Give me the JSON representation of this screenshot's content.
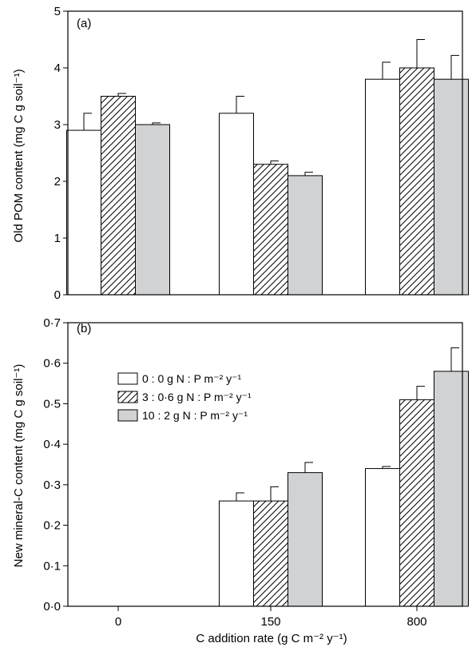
{
  "figure": {
    "xlabel": "C addition rate (g C m⁻² y⁻¹)"
  },
  "legend": {
    "entries": [
      "0 : 0 g N : P m⁻² y⁻¹",
      "3 : 0·6 g N : P m⁻² y⁻¹",
      "10 : 2 g N : P m⁻² y⁻¹"
    ],
    "fills": [
      "#ffffff",
      "hatch",
      "#d0d2d4"
    ]
  },
  "chart_data": [
    {
      "type": "bar",
      "panel_label": "(a)",
      "categories": [
        "0",
        "150",
        "800"
      ],
      "ylabel": "Old POM content (mg C g soil⁻¹)",
      "ylim": [
        0,
        5
      ],
      "yticks": [
        "0",
        "1",
        "2",
        "3",
        "4",
        "5"
      ],
      "series": [
        {
          "name": "0 : 0 g N : P m⁻² y⁻¹",
          "values": [
            2.9,
            3.2,
            3.8
          ],
          "errors": [
            0.3,
            0.3,
            0.3
          ]
        },
        {
          "name": "3 : 0·6 g N : P m⁻² y⁻¹",
          "values": [
            3.5,
            2.3,
            4.0
          ],
          "errors": [
            0.05,
            0.06,
            0.5
          ]
        },
        {
          "name": "10 : 2 g N : P m⁻² y⁻¹",
          "values": [
            3.0,
            2.1,
            3.8
          ],
          "errors": [
            0.03,
            0.06,
            0.42
          ]
        }
      ]
    },
    {
      "type": "bar",
      "panel_label": "(b)",
      "categories": [
        "0",
        "150",
        "800"
      ],
      "ylabel": "New mineral-C content (mg C g soil⁻¹)",
      "ylim": [
        0,
        0.7
      ],
      "yticks": [
        "0·0",
        "0·1",
        "0·2",
        "0·3",
        "0·4",
        "0·5",
        "0·6",
        "0·7"
      ],
      "series": [
        {
          "name": "0 : 0 g N : P m⁻² y⁻¹",
          "values": [
            0,
            0.26,
            0.34
          ],
          "errors": [
            0,
            0.02,
            0.005
          ]
        },
        {
          "name": "3 : 0·6 g N : P m⁻² y⁻¹",
          "values": [
            0,
            0.26,
            0.51
          ],
          "errors": [
            0,
            0.035,
            0.033
          ]
        },
        {
          "name": "10 : 2 g N : P m⁻² y⁻¹",
          "values": [
            0,
            0.33,
            0.58
          ],
          "errors": [
            0,
            0.025,
            0.058
          ]
        }
      ]
    }
  ]
}
